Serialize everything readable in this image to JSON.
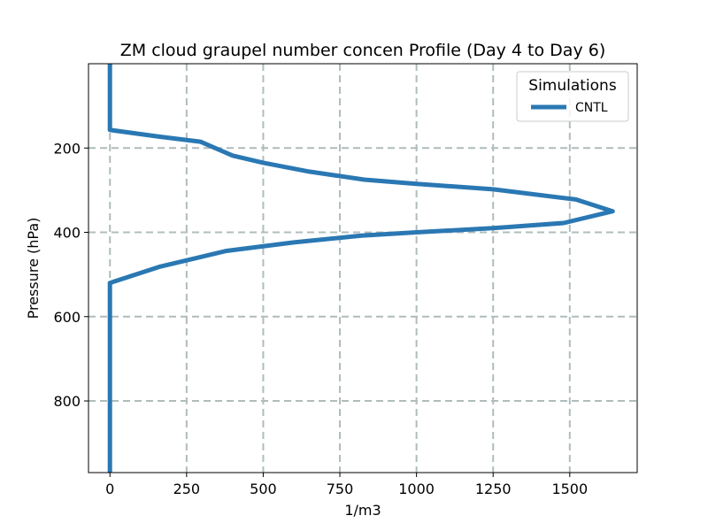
{
  "chart_data": {
    "type": "line",
    "title": "ZM cloud graupel number concen Profile (Day 4 to Day 6)",
    "xlabel": "1/m3",
    "ylabel": "Pressure (hPa)",
    "xlim": [
      -70,
      1720
    ],
    "ylim": [
      970,
      0
    ],
    "y_inverted": true,
    "grid": true,
    "x_ticks": [
      0,
      250,
      500,
      750,
      1000,
      1250,
      1500
    ],
    "x_tick_labels": [
      "0",
      "250",
      "500",
      "750",
      "1000",
      "1250",
      "1500"
    ],
    "y_ticks": [
      200,
      400,
      600,
      800
    ],
    "y_tick_labels": [
      "200",
      "400",
      "600",
      "800"
    ],
    "legend": {
      "title": "Simulations",
      "position": "top-right"
    },
    "series": [
      {
        "name": "CNTL",
        "color": "#2a78b3",
        "x": [
          0,
          0,
          0,
          160,
          295,
          400,
          500,
          650,
          830,
          1000,
          1250,
          1520,
          1640,
          1480,
          1250,
          1000,
          820,
          600,
          380,
          160,
          0,
          0,
          0
        ],
        "y": [
          0,
          100,
          157,
          173,
          185,
          218,
          235,
          256,
          275,
          285,
          298,
          322,
          350,
          378,
          390,
          400,
          408,
          424,
          444,
          482,
          520,
          700,
          970
        ]
      }
    ]
  }
}
